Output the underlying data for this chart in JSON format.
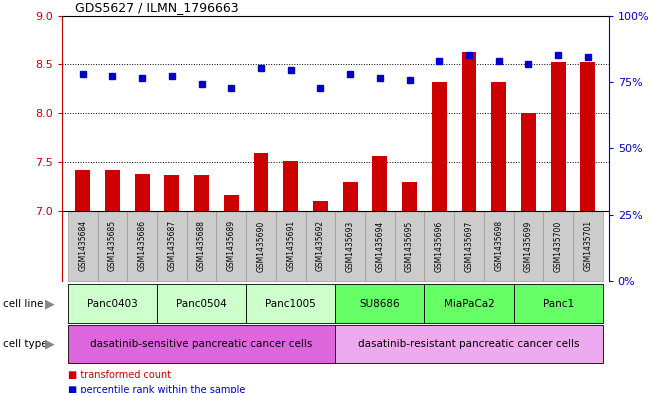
{
  "title": "GDS5627 / ILMN_1796663",
  "samples": [
    "GSM1435684",
    "GSM1435685",
    "GSM1435686",
    "GSM1435687",
    "GSM1435688",
    "GSM1435689",
    "GSM1435690",
    "GSM1435691",
    "GSM1435692",
    "GSM1435693",
    "GSM1435694",
    "GSM1435695",
    "GSM1435696",
    "GSM1435697",
    "GSM1435698",
    "GSM1435699",
    "GSM1435700",
    "GSM1435701"
  ],
  "transformed_count": [
    7.42,
    7.42,
    7.38,
    7.37,
    7.37,
    7.16,
    7.59,
    7.51,
    7.1,
    7.3,
    7.56,
    7.29,
    8.32,
    8.63,
    8.32,
    8.0,
    8.53,
    8.53
  ],
  "percentile_rank": [
    70,
    69,
    68,
    69,
    65,
    63,
    73,
    72,
    63,
    70,
    68,
    67,
    77,
    80,
    77,
    75,
    80,
    79
  ],
  "bar_color": "#cc0000",
  "dot_color": "#0000cc",
  "ylim_left": [
    7.0,
    9.0
  ],
  "ylim_right": [
    0,
    100
  ],
  "yticks_left": [
    7.0,
    7.5,
    8.0,
    8.5,
    9.0
  ],
  "yticks_right": [
    0,
    25,
    50,
    75,
    100
  ],
  "yticklabels_right": [
    "0%",
    "25%",
    "50%",
    "75%",
    "100%"
  ],
  "cell_lines": [
    {
      "label": "Panc0403",
      "start": 0,
      "end": 2,
      "color": "#ccffcc"
    },
    {
      "label": "Panc0504",
      "start": 3,
      "end": 5,
      "color": "#ccffcc"
    },
    {
      "label": "Panc1005",
      "start": 6,
      "end": 8,
      "color": "#ccffcc"
    },
    {
      "label": "SU8686",
      "start": 9,
      "end": 11,
      "color": "#66ff66"
    },
    {
      "label": "MiaPaCa2",
      "start": 12,
      "end": 14,
      "color": "#66ff66"
    },
    {
      "label": "Panc1",
      "start": 15,
      "end": 17,
      "color": "#66ff66"
    }
  ],
  "cell_types": [
    {
      "label": "dasatinib-sensitive pancreatic cancer cells",
      "start": 0,
      "end": 8,
      "color": "#dd66dd"
    },
    {
      "label": "dasatinib-resistant pancreatic cancer cells",
      "start": 9,
      "end": 17,
      "color": "#eeaaee"
    }
  ],
  "legend_items": [
    {
      "color": "#cc0000",
      "label": "transformed count"
    },
    {
      "color": "#0000cc",
      "label": "percentile rank within the sample"
    }
  ],
  "cell_line_label": "cell line",
  "cell_type_label": "cell type",
  "left_axis_color": "#cc0000",
  "right_axis_color": "#0000cc",
  "bg_color": "#ffffff"
}
